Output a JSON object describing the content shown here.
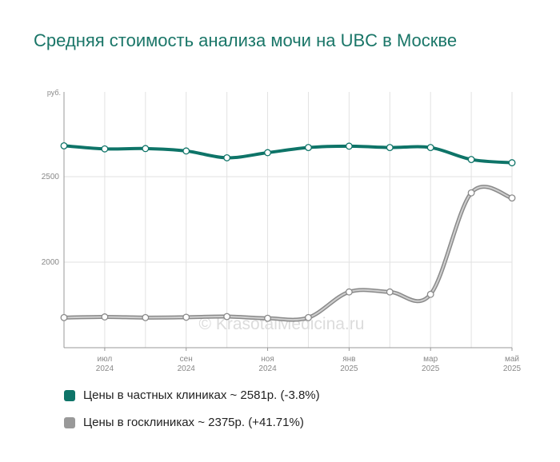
{
  "chart_data": {
    "type": "line",
    "title": "Средняя стоимость анализа мочи на UBC в Москве",
    "y_unit": "руб.",
    "ylim": [
      1500,
      2995
    ],
    "y_ticks": [
      "2000",
      "2500"
    ],
    "x": [
      "2024-06",
      "2024-07",
      "2024-08",
      "2024-09",
      "2024-10",
      "2024-11",
      "2024-12",
      "2025-01",
      "2025-02",
      "2025-03",
      "2025-04",
      "2025-05"
    ],
    "x_tick_labels": [
      {
        "index": 1,
        "month": "июл",
        "year": "2024"
      },
      {
        "index": 3,
        "month": "сен",
        "year": "2024"
      },
      {
        "index": 5,
        "month": "ноя",
        "year": "2024"
      },
      {
        "index": 7,
        "month": "янв",
        "year": "2025"
      },
      {
        "index": 9,
        "month": "мар",
        "year": "2025"
      },
      {
        "index": 11,
        "month": "май",
        "year": "2025"
      }
    ],
    "series": [
      {
        "name": "Цены в частных клиниках ~ 2581р. (-3.8%)",
        "color": "#0e7468",
        "values": [
          2680,
          2662,
          2664,
          2650,
          2610,
          2640,
          2670,
          2678,
          2670,
          2670,
          2600,
          2581
        ]
      },
      {
        "name": "Цены в госклиниках ~ 2375р. (+41.71%)",
        "color": "#999999",
        "values": [
          1676,
          1680,
          1676,
          1678,
          1682,
          1672,
          1676,
          1826,
          1826,
          1812,
          2405,
          2375
        ]
      }
    ],
    "grid": true,
    "legend": "bottom",
    "watermark": "© KrasotaiMedicina.ru"
  }
}
